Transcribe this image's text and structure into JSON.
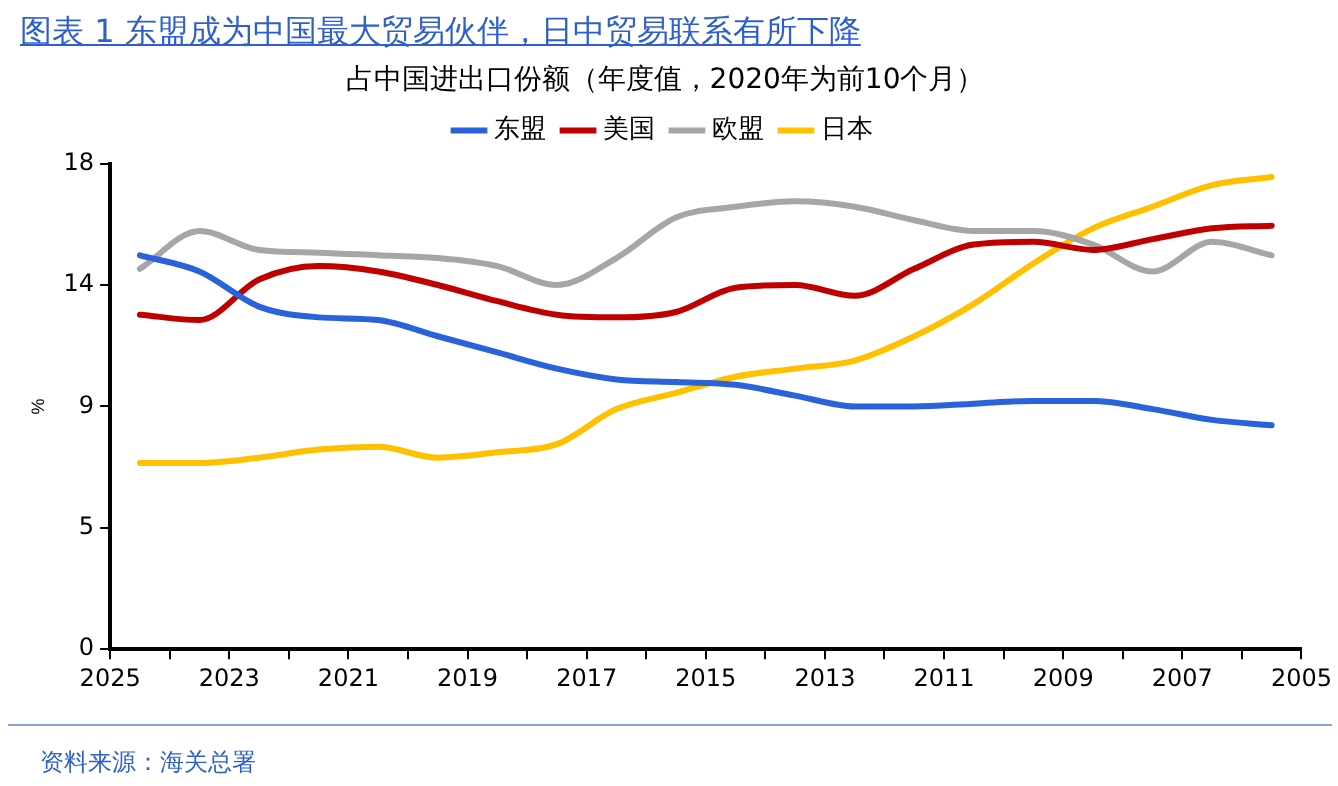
{
  "chart_data": {
    "type": "line",
    "title": "图表 1 东盟成为中国最大贸易伙伴，日中贸易联系有所下降",
    "subtitle": "占中国进出口份额（年度值，2020年为前10个月）",
    "ylabel": "%",
    "x": [
      2024.5,
      2023.5,
      2022.5,
      2021.5,
      2020.5,
      2019.5,
      2018.5,
      2017.5,
      2016.5,
      2015.5,
      2014.5,
      2013.5,
      2012.5,
      2011.5,
      2010.5,
      2009.5,
      2008.5,
      2007.5,
      2006.5,
      2005.5
    ],
    "series": [
      {
        "name": "东盟",
        "color": "#2a62dc",
        "values": [
          14.6,
          14.0,
          12.7,
          12.3,
          12.2,
          11.6,
          11.0,
          10.4,
          10.0,
          9.9,
          9.8,
          9.4,
          9.0,
          9.0,
          9.1,
          9.2,
          9.2,
          8.9,
          8.5,
          8.3
        ]
      },
      {
        "name": "美国",
        "color": "#c00000",
        "values": [
          12.4,
          12.2,
          13.7,
          14.2,
          14.0,
          13.5,
          12.9,
          12.4,
          12.3,
          12.5,
          13.4,
          13.5,
          13.1,
          14.1,
          15.0,
          15.1,
          14.8,
          15.2,
          15.6,
          15.7
        ]
      },
      {
        "name": "欧盟",
        "color": "#a6a6a6",
        "values": [
          14.1,
          15.5,
          14.8,
          14.7,
          14.6,
          14.5,
          14.2,
          13.5,
          14.5,
          16.0,
          16.4,
          16.6,
          16.4,
          15.9,
          15.5,
          15.5,
          15.0,
          14.0,
          15.1,
          14.6
        ]
      },
      {
        "name": "日本",
        "color": "#ffc000",
        "values": [
          6.9,
          6.9,
          7.1,
          7.4,
          7.5,
          7.1,
          7.3,
          7.6,
          8.9,
          9.5,
          10.1,
          10.4,
          10.7,
          11.6,
          12.8,
          14.3,
          15.6,
          16.4,
          17.2,
          17.5
        ]
      }
    ],
    "xlim": [
      2025,
      2005
    ],
    "xticks": [
      2025,
      {
        "value": 2024,
        "label": null
      },
      2023,
      {
        "value": 2022,
        "label": null
      },
      2021,
      {
        "value": 2020,
        "label": null
      },
      2019,
      {
        "value": 2018,
        "label": null
      },
      2017,
      {
        "value": 2016,
        "label": null
      },
      2015,
      {
        "value": 2014,
        "label": null
      },
      2013,
      {
        "value": 2012,
        "label": null
      },
      2011,
      {
        "value": 2010,
        "label": null
      },
      2009,
      {
        "value": 2008,
        "label": null
      },
      2007,
      {
        "value": 2006,
        "label": null
      },
      2005
    ],
    "ylim": [
      0,
      18
    ],
    "yticks": [
      0,
      {
        "value": 4.5,
        "label": "5"
      },
      9,
      {
        "value": 13.5,
        "label": "14"
      },
      18
    ],
    "grid": false,
    "legend": "top",
    "marker": "none",
    "line_style": "solid",
    "annotations": [
      "资料来源：海关总署"
    ]
  }
}
